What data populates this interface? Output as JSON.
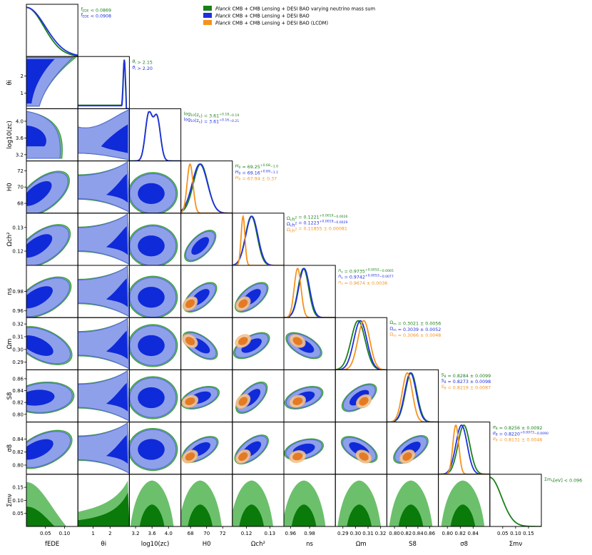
{
  "chart_data": {
    "type": "triangle",
    "legend": [
      {
        "id": "nu",
        "label_italic": "Planck",
        "label_rest": " CMB + CMB Lensing + DESI BAO varying neutrino mass sum",
        "color": "#1a7f1a"
      },
      {
        "id": "ede",
        "label_italic": "Planck",
        "label_rest": " CMB + CMB Lensing + DESI BAO",
        "color": "#1f2fe0"
      },
      {
        "id": "lcdm",
        "label_italic": "Planck",
        "label_rest": " CMB + CMB Lensing + DESI BAO (LCDM)",
        "color": "#f5921e"
      }
    ],
    "colors": {
      "nu": "#1a7f1a",
      "nu_light": "#6cc06c",
      "nu_dark": "#0a7a0a",
      "ede": "#1f2fe0",
      "ede_light": "#8fa0ea",
      "ede_dark": "#0f2ad8",
      "lcdm": "#f5921e",
      "lcdm_light": "#f3c89a",
      "lcdm_dark": "#e47b23"
    },
    "params": [
      {
        "id": "fEDE",
        "label": "f_EDE",
        "display": "fEDE",
        "ticks": [
          {
            "v": 0.05,
            "t": "0.05"
          },
          {
            "v": 0.1,
            "t": "0.10"
          }
        ],
        "range": [
          0,
          0.135
        ]
      },
      {
        "id": "thetai",
        "label": "theta_i",
        "display": "θi",
        "ticks": [
          {
            "v": 1,
            "t": "1"
          },
          {
            "v": 2,
            "t": "2"
          }
        ],
        "range": [
          0.1,
          3.14
        ]
      },
      {
        "id": "log10zc",
        "label": "log10(z_c)",
        "display": "log10(zc)",
        "ticks": [
          {
            "v": 3.2,
            "t": "3.2"
          },
          {
            "v": 3.6,
            "t": "3.6"
          },
          {
            "v": 4.0,
            "t": "4.0"
          }
        ],
        "range": [
          3.05,
          4.3
        ]
      },
      {
        "id": "H0",
        "label": "H_0",
        "display": "H0",
        "ticks": [
          {
            "v": 68,
            "t": "68"
          },
          {
            "v": 70,
            "t": "70"
          },
          {
            "v": 72,
            "t": "72"
          }
        ],
        "range": [
          66.8,
          73.2
        ]
      },
      {
        "id": "omch2",
        "label": "Omega_c h^2",
        "display": "Ωch²",
        "ticks": [
          {
            "v": 0.12,
            "t": "0.12"
          },
          {
            "v": 0.13,
            "t": "0.13"
          }
        ],
        "range": [
          0.114,
          0.136
        ]
      },
      {
        "id": "ns",
        "label": "n_s",
        "display": "ns",
        "ticks": [
          {
            "v": 0.96,
            "t": "0.96"
          },
          {
            "v": 0.98,
            "t": "0.98"
          }
        ],
        "range": [
          0.953,
          1.007
        ]
      },
      {
        "id": "Om",
        "label": "Omega_m",
        "display": "Ωm",
        "ticks": [
          {
            "v": 0.29,
            "t": "0.29"
          },
          {
            "v": 0.3,
            "t": "0.30"
          },
          {
            "v": 0.31,
            "t": "0.31"
          },
          {
            "v": 0.32,
            "t": "0.32"
          }
        ],
        "range": [
          0.284,
          0.325
        ]
      },
      {
        "id": "S8",
        "label": "S_8",
        "display": "S8",
        "ticks": [
          {
            "v": 0.8,
            "t": "0.80"
          },
          {
            "v": 0.82,
            "t": "0.82"
          },
          {
            "v": 0.84,
            "t": "0.84"
          },
          {
            "v": 0.86,
            "t": "0.86"
          }
        ],
        "range": [
          0.787,
          0.875
        ]
      },
      {
        "id": "sigma8",
        "label": "sigma_8",
        "display": "σ8",
        "ticks": [
          {
            "v": 0.8,
            "t": "0.80"
          },
          {
            "v": 0.82,
            "t": "0.82"
          },
          {
            "v": 0.84,
            "t": "0.84"
          }
        ],
        "range": [
          0.786,
          0.866
        ]
      },
      {
        "id": "mnu",
        "label": "sum m_nu",
        "display": "Σmν",
        "ticks": [
          {
            "v": 0.05,
            "t": "0.05"
          },
          {
            "v": 0.1,
            "t": "0.10"
          },
          {
            "v": 0.15,
            "t": "0.15"
          }
        ],
        "range": [
          0,
          0.2
        ]
      }
    ],
    "marginals": [
      {
        "param": "fEDE",
        "series": [
          {
            "set": "nu",
            "mean": 0.0,
            "sd": 0.046,
            "kind": "half"
          },
          {
            "set": "ede",
            "mean": 0.0,
            "sd": 0.05,
            "kind": "half"
          }
        ]
      },
      {
        "param": "thetai",
        "series": [
          {
            "set": "nu",
            "kind": "peak",
            "peak": 2.84,
            "width": 0.07,
            "base": 0.07
          },
          {
            "set": "ede",
            "kind": "peak",
            "peak": 2.84,
            "width": 0.06,
            "base": 0.06
          }
        ]
      },
      {
        "param": "log10zc",
        "series": [
          {
            "set": "nu",
            "kind": "bimodal",
            "m1": 3.52,
            "m2": 3.72,
            "sd": 0.12
          },
          {
            "set": "ede",
            "kind": "bimodal",
            "m1": 3.52,
            "m2": 3.72,
            "sd": 0.12
          }
        ]
      },
      {
        "param": "H0",
        "series": [
          {
            "set": "nu",
            "mean": 69.25,
            "sd": 0.9
          },
          {
            "set": "ede",
            "mean": 69.16,
            "sd": 0.95
          },
          {
            "set": "lcdm",
            "mean": 67.94,
            "sd": 0.37
          }
        ]
      },
      {
        "param": "omch2",
        "series": [
          {
            "set": "nu",
            "mean": 0.1221,
            "sd": 0.0025
          },
          {
            "set": "ede",
            "mean": 0.1223,
            "sd": 0.0026
          },
          {
            "set": "lcdm",
            "mean": 0.11855,
            "sd": 0.00081
          }
        ]
      },
      {
        "param": "ns",
        "series": [
          {
            "set": "nu",
            "mean": 0.9735,
            "sd": 0.0055
          },
          {
            "set": "ede",
            "mean": 0.9742,
            "sd": 0.0057
          },
          {
            "set": "lcdm",
            "mean": 0.9674,
            "sd": 0.0036
          }
        ]
      },
      {
        "param": "Om",
        "series": [
          {
            "set": "nu",
            "mean": 0.3021,
            "sd": 0.0056
          },
          {
            "set": "ede",
            "mean": 0.3039,
            "sd": 0.0052
          },
          {
            "set": "lcdm",
            "mean": 0.3066,
            "sd": 0.0048
          }
        ]
      },
      {
        "param": "S8",
        "series": [
          {
            "set": "nu",
            "mean": 0.8284,
            "sd": 0.0099
          },
          {
            "set": "ede",
            "mean": 0.8273,
            "sd": 0.0098
          },
          {
            "set": "lcdm",
            "mean": 0.8219,
            "sd": 0.0087
          }
        ]
      },
      {
        "param": "sigma8",
        "series": [
          {
            "set": "nu",
            "mean": 0.8256,
            "sd": 0.0092
          },
          {
            "set": "ede",
            "mean": 0.822,
            "sd": 0.0088
          },
          {
            "set": "lcdm",
            "mean": 0.8131,
            "sd": 0.0046
          }
        ]
      },
      {
        "param": "mnu",
        "series": [
          {
            "set": "nu",
            "mean": 0.0,
            "sd": 0.045,
            "kind": "half"
          }
        ]
      }
    ],
    "constraints": [
      [
        {
          "set": "nu",
          "parts": [
            {
              "t": "f",
              "it": true
            },
            {
              "t": "EDE",
              "sub": true
            },
            {
              "t": " < 0.0869"
            }
          ]
        },
        {
          "set": "ede",
          "parts": [
            {
              "t": "f",
              "it": true
            },
            {
              "t": "EDE",
              "sub": true
            },
            {
              "t": " < 0.0908"
            }
          ]
        }
      ],
      [
        {
          "set": "nu",
          "parts": [
            {
              "t": "θ",
              "it": true
            },
            {
              "t": "i",
              "sub": true
            },
            {
              "t": " > 2.15"
            }
          ]
        },
        {
          "set": "ede",
          "parts": [
            {
              "t": "θ",
              "it": true
            },
            {
              "t": "i",
              "sub": true
            },
            {
              "t": " > 2.20"
            }
          ]
        }
      ],
      [
        {
          "set": "nu",
          "parts": [
            {
              "t": "log"
            },
            {
              "t": "10",
              "sub": true
            },
            {
              "t": "(z"
            },
            {
              "t": "c",
              "sub": true
            },
            {
              "t": ") = 3.61"
            },
            {
              "t": "+0.18",
              "sup": true
            },
            {
              "t": "−0.19",
              "sub": true
            }
          ]
        },
        {
          "set": "ede",
          "parts": [
            {
              "t": "log"
            },
            {
              "t": "10",
              "sub": true
            },
            {
              "t": "(z"
            },
            {
              "t": "c",
              "sub": true
            },
            {
              "t": ") = 3.61"
            },
            {
              "t": "+0.16",
              "sup": true
            },
            {
              "t": "−0.21",
              "sub": true
            }
          ]
        }
      ],
      [
        {
          "set": "nu",
          "parts": [
            {
              "t": "H",
              "it": true
            },
            {
              "t": "0",
              "sub": true
            },
            {
              "t": " = 69.25"
            },
            {
              "t": "+0.68",
              "sup": true
            },
            {
              "t": "−1.0",
              "sub": true
            }
          ]
        },
        {
          "set": "ede",
          "parts": [
            {
              "t": "H",
              "it": true
            },
            {
              "t": "0",
              "sub": true
            },
            {
              "t": " = 69.16"
            },
            {
              "t": "+0.69",
              "sup": true
            },
            {
              "t": "−1.1",
              "sub": true
            }
          ]
        },
        {
          "set": "lcdm",
          "parts": [
            {
              "t": "H",
              "it": true
            },
            {
              "t": "0",
              "sub": true
            },
            {
              "t": " = 67.94 ± 0.37"
            }
          ]
        }
      ],
      [
        {
          "set": "nu",
          "parts": [
            {
              "t": "Ω"
            },
            {
              "t": "c",
              "sub": true
            },
            {
              "t": "h"
            },
            {
              "t": "2",
              "sup": true
            },
            {
              "t": " = 0.1221"
            },
            {
              "t": "+0.0019",
              "sup": true
            },
            {
              "t": "−0.0026",
              "sub": true
            }
          ]
        },
        {
          "set": "ede",
          "parts": [
            {
              "t": "Ω"
            },
            {
              "t": "c",
              "sub": true
            },
            {
              "t": "h"
            },
            {
              "t": "2",
              "sup": true
            },
            {
              "t": " = 0.1223"
            },
            {
              "t": "+0.0019",
              "sup": true
            },
            {
              "t": "−0.0029",
              "sub": true
            }
          ]
        },
        {
          "set": "lcdm",
          "parts": [
            {
              "t": "Ω"
            },
            {
              "t": "c",
              "sub": true
            },
            {
              "t": "h"
            },
            {
              "t": "2",
              "sup": true
            },
            {
              "t": " = 0.11855 ± 0.00081"
            }
          ]
        }
      ],
      [
        {
          "set": "nu",
          "parts": [
            {
              "t": "n",
              "it": true
            },
            {
              "t": "s",
              "sub": true
            },
            {
              "t": " = 0.9735"
            },
            {
              "t": "+0.0052",
              "sup": true
            },
            {
              "t": "−0.0065",
              "sub": true
            }
          ]
        },
        {
          "set": "ede",
          "parts": [
            {
              "t": "n",
              "it": true
            },
            {
              "t": "s",
              "sub": true
            },
            {
              "t": " = 0.9742"
            },
            {
              "t": "+0.0053",
              "sup": true
            },
            {
              "t": "−0.0077",
              "sub": true
            }
          ]
        },
        {
          "set": "lcdm",
          "parts": [
            {
              "t": "n",
              "it": true
            },
            {
              "t": "s",
              "sub": true
            },
            {
              "t": " = 0.9674 ± 0.0036"
            }
          ]
        }
      ],
      [
        {
          "set": "nu",
          "parts": [
            {
              "t": "Ω"
            },
            {
              "t": "m",
              "sub": true
            },
            {
              "t": " = 0.3021 ± 0.0056"
            }
          ]
        },
        {
          "set": "ede",
          "parts": [
            {
              "t": "Ω"
            },
            {
              "t": "m",
              "sub": true
            },
            {
              "t": " = 0.3039 ± 0.0052"
            }
          ]
        },
        {
          "set": "lcdm",
          "parts": [
            {
              "t": "Ω"
            },
            {
              "t": "m",
              "sub": true
            },
            {
              "t": " = 0.3066 ± 0.0048"
            }
          ]
        }
      ],
      [
        {
          "set": "nu",
          "parts": [
            {
              "t": "S",
              "it": true
            },
            {
              "t": "8",
              "sub": true
            },
            {
              "t": " = 0.8284 ± 0.0099"
            }
          ]
        },
        {
          "set": "ede",
          "parts": [
            {
              "t": "S",
              "it": true
            },
            {
              "t": "8",
              "sub": true
            },
            {
              "t": " = 0.8273 ± 0.0098"
            }
          ]
        },
        {
          "set": "lcdm",
          "parts": [
            {
              "t": "S",
              "it": true
            },
            {
              "t": "8",
              "sub": true
            },
            {
              "t": " = 0.8219 ± 0.0087"
            }
          ]
        }
      ],
      [
        {
          "set": "nu",
          "parts": [
            {
              "t": "σ",
              "it": true
            },
            {
              "t": "8",
              "sub": true
            },
            {
              "t": " = 0.8256 ± 0.0092"
            }
          ]
        },
        {
          "set": "ede",
          "parts": [
            {
              "t": "σ",
              "it": true
            },
            {
              "t": "8",
              "sub": true
            },
            {
              "t": " = 0.8220"
            },
            {
              "t": "+0.0073",
              "sup": true
            },
            {
              "t": "−0.0090",
              "sub": true
            }
          ]
        },
        {
          "set": "lcdm",
          "parts": [
            {
              "t": "σ",
              "it": true
            },
            {
              "t": "8",
              "sub": true
            },
            {
              "t": " = 0.8131 ± 0.0046"
            }
          ]
        }
      ],
      [
        {
          "set": "nu",
          "parts": [
            {
              "t": "Σm"
            },
            {
              "t": "ν",
              "sub": true
            },
            {
              "t": "[eV] < 0.096"
            }
          ]
        }
      ]
    ],
    "posterior_means": {
      "fEDE": 0.04,
      "thetai": 2.4,
      "log10zc": 3.6,
      "H0": 69.2,
      "omch2": 0.1222,
      "ns": 0.974,
      "Om": 0.303,
      "S8": 0.828,
      "sigma8": 0.824,
      "mnu": 0.04
    },
    "lcdm_means": {
      "H0": 67.94,
      "omch2": 0.11855,
      "ns": 0.9674,
      "Om": 0.3066,
      "S8": 0.8219,
      "sigma8": 0.8131
    }
  }
}
